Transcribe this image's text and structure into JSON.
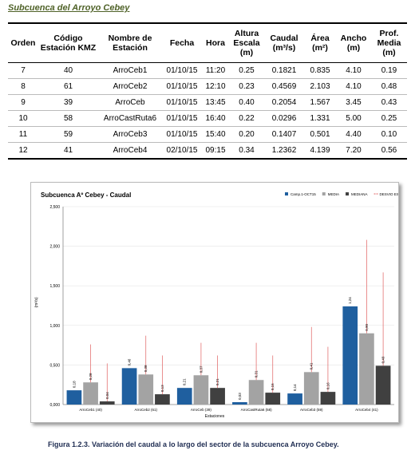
{
  "title": "Subcuenca del Arroyo Cebey",
  "table": {
    "headers": [
      "Orden",
      "Código Estación KMZ",
      "Nombre de Estación",
      "Fecha",
      "Hora",
      "Altura Escala (m)",
      "Caudal (m³/s)",
      "Área (m²)",
      "Ancho (m)",
      "Prof. Media (m)"
    ],
    "rows": [
      [
        "7",
        "40",
        "ArroCeb1",
        "01/10/15",
        "11:20",
        "0.25",
        "0.1821",
        "0.835",
        "4.10",
        "0.19"
      ],
      [
        "8",
        "61",
        "ArroCeb2",
        "01/10/15",
        "12:10",
        "0.23",
        "0.4569",
        "2.103",
        "4.10",
        "0.48"
      ],
      [
        "9",
        "39",
        "ArroCeb",
        "01/10/15",
        "13:45",
        "0.40",
        "0.2054",
        "1.567",
        "3.45",
        "0.43"
      ],
      [
        "10",
        "58",
        "ArroCastRuta6",
        "01/10/15",
        "16:40",
        "0.22",
        "0.0296",
        "1.331",
        "5.00",
        "0.25"
      ],
      [
        "11",
        "59",
        "ArroCeb3",
        "01/10/15",
        "15:40",
        "0.20",
        "0.1407",
        "0.501",
        "4.40",
        "0.10"
      ],
      [
        "12",
        "41",
        "ArroCeb4",
        "02/10/15",
        "09:15",
        "0.34",
        "1.2362",
        "4.139",
        "7.20",
        "0.56"
      ]
    ]
  },
  "chart_data": {
    "type": "bar",
    "title": "Subcuenca Aº Cebey - Caudal",
    "x_label": "Estaciones",
    "y_label": "(m³/s)",
    "categories": [
      "ArroCeb1 (40)",
      "ArroCeb2 (61)",
      "ArroCeb (39)",
      "ArroCastRuta6 (58)",
      "ArroCeb3 (59)",
      "ArroCeb4 (41)"
    ],
    "series": [
      {
        "name": "Camp.1-OCT15",
        "type": "bar",
        "color": "#1f5f9f",
        "values": [
          0.18,
          0.46,
          0.21,
          0.03,
          0.14,
          1.24
        ],
        "value_labels": [
          "0,18",
          "0,46",
          "0,21",
          "0,03",
          "0,14",
          "1,24"
        ]
      },
      {
        "name": "MEDIA",
        "type": "bar",
        "color": "#a3a3a3",
        "values": [
          0.28,
          0.38,
          0.37,
          0.31,
          0.41,
          0.9
        ],
        "value_labels": [
          "0,28",
          "0,38",
          "0,37",
          "0,31",
          "0,41",
          "0,90"
        ]
      },
      {
        "name": "MEDIANA",
        "type": "bar",
        "color": "#404040",
        "values": [
          0.04,
          0.13,
          0.21,
          0.15,
          0.16,
          0.49
        ],
        "value_labels": [
          "0,04",
          "0,13",
          "0,21",
          "0,15",
          "0,16",
          "0,49"
        ]
      },
      {
        "name": "DESVIO ESTANDAR",
        "type": "errorbar",
        "color": "#e06060",
        "values": [
          0.48,
          0.49,
          0.41,
          0.47,
          0.57,
          1.18
        ]
      }
    ],
    "ylim": [
      0,
      2.5
    ],
    "yticks": [
      {
        "value": 0,
        "label": "0,000"
      },
      {
        "value": 0.5,
        "label": "0,500"
      },
      {
        "value": 1,
        "label": "1,000"
      },
      {
        "value": 1.5,
        "label": "1,500"
      },
      {
        "value": 2,
        "label": "2,000"
      },
      {
        "value": 2.5,
        "label": "2,500"
      }
    ],
    "grid": true,
    "legend": "top-right"
  },
  "caption": "Figura 1.2.3. Variación del caudal a lo largo del sector de la subcuenca Arroyo Cebey."
}
